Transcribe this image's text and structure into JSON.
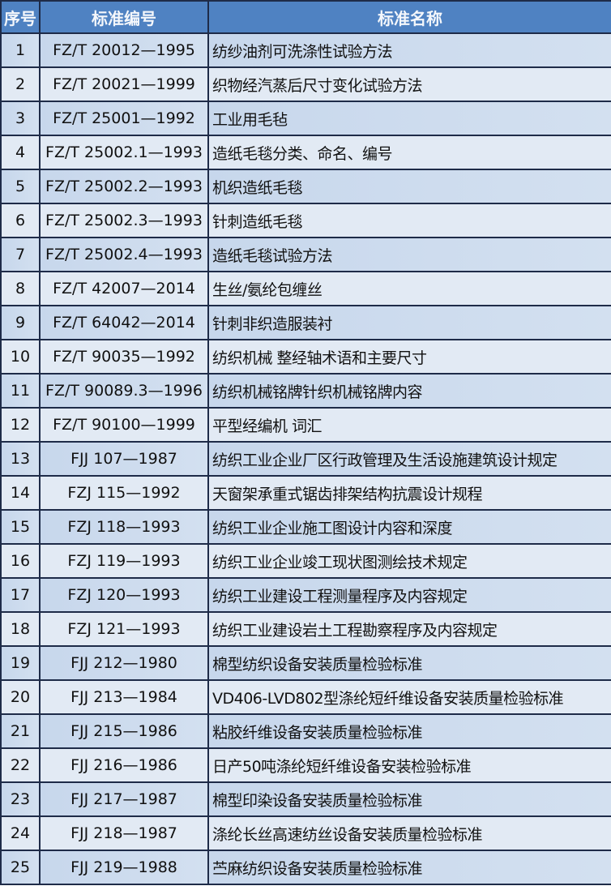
{
  "header": {
    "col_no": "序号",
    "col_code": "标准编号",
    "col_name": "标准名称"
  },
  "rows": [
    {
      "no": "1",
      "code": "FZ/T 20012—1995",
      "name": "纺纱油剂可洗涤性试验方法"
    },
    {
      "no": "2",
      "code": "FZ/T 20021—1999",
      "name": "织物经汽蒸后尺寸变化试验方法"
    },
    {
      "no": "3",
      "code": "FZ/T 25001—1992",
      "name": "工业用毛毡"
    },
    {
      "no": "4",
      "code": "FZ/T 25002.1—1993",
      "name": "造纸毛毯分类、命名、编号"
    },
    {
      "no": "5",
      "code": "FZ/T 25002.2—1993",
      "name": "机织造纸毛毯"
    },
    {
      "no": "6",
      "code": "FZ/T 25002.3—1993",
      "name": "针刺造纸毛毯"
    },
    {
      "no": "7",
      "code": "FZ/T 25002.4—1993",
      "name": "造纸毛毯试验方法"
    },
    {
      "no": "8",
      "code": "FZ/T 42007—2014",
      "name": "生丝/氨纶包缠丝"
    },
    {
      "no": "9",
      "code": "FZ/T 64042—2014",
      "name": "针刺非织造服装衬"
    },
    {
      "no": "10",
      "code": "FZ/T 90035—1992",
      "name": "纺织机械 整经轴术语和主要尺寸"
    },
    {
      "no": "11",
      "code": "FZ/T 90089.3—1996",
      "name": "纺织机械铭牌针织机械铭牌内容"
    },
    {
      "no": "12",
      "code": "FZ/T 90100—1999",
      "name": "平型经编机 词汇"
    },
    {
      "no": "13",
      "code": "FJJ 107—1987",
      "name": "纺织工业企业厂区行政管理及生活设施建筑设计规定"
    },
    {
      "no": "14",
      "code": "FZJ 115—1992",
      "name": "天窗架承重式锯齿排架结构抗震设计规程"
    },
    {
      "no": "15",
      "code": "FZJ 118—1993",
      "name": "纺织工业企业施工图设计内容和深度"
    },
    {
      "no": "16",
      "code": "FZJ 119—1993",
      "name": "纺织工业企业竣工现状图测绘技术规定"
    },
    {
      "no": "17",
      "code": "FZJ 120—1993",
      "name": "纺织工业建设工程测量程序及内容规定"
    },
    {
      "no": "18",
      "code": "FZJ 121—1993",
      "name": "纺织工业建设岩土工程勘察程序及内容规定"
    },
    {
      "no": "19",
      "code": "FJJ 212—1980",
      "name": "棉型纺织设备安装质量检验标准"
    },
    {
      "no": "20",
      "code": "FJJ 213—1984",
      "name": "VD406-LVD802型涤纶短纤维设备安装质量检验标准"
    },
    {
      "no": "21",
      "code": "FJJ 215—1986",
      "name": "粘胶纤维设备安装质量检验标准"
    },
    {
      "no": "22",
      "code": "FJJ 216—1986",
      "name": "日产50吨涤纶短纤维设备安装检验标准"
    },
    {
      "no": "23",
      "code": "FJJ 217—1987",
      "name": "棉型印染设备安装质量检验标准"
    },
    {
      "no": "24",
      "code": "FJJ 218—1987",
      "name": "涤纶长丝高速纺丝设备安装质量检验标准"
    },
    {
      "no": "25",
      "code": "FJJ 219—1988",
      "name": "苎麻纺织设备安装质量检验标准"
    }
  ]
}
